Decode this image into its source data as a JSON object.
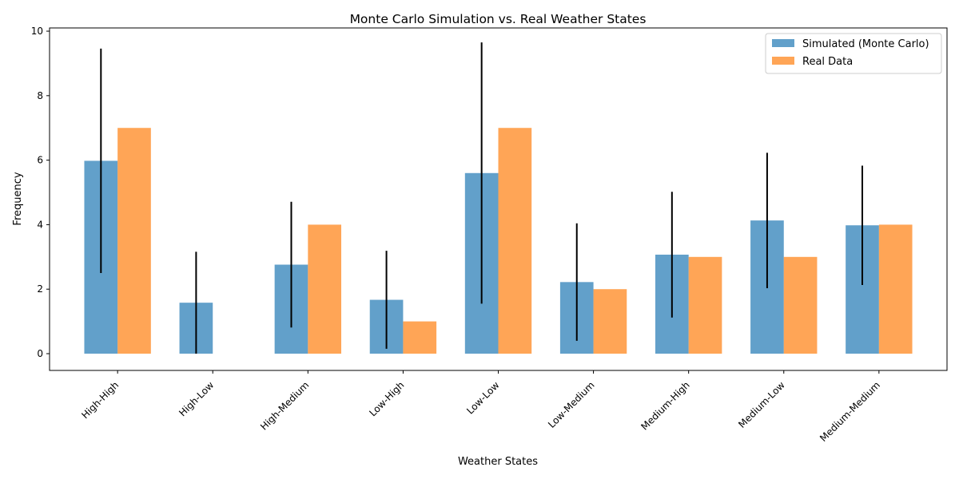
{
  "chart_data": {
    "type": "bar",
    "title": "Monte Carlo Simulation vs. Real Weather States",
    "xlabel": "Weather States",
    "ylabel": "Frequency",
    "ylim": [
      -0.52,
      10.1
    ],
    "yticks": [
      0,
      2,
      4,
      6,
      8,
      10
    ],
    "categories": [
      "High-High",
      "High-Low",
      "High-Medium",
      "Low-High",
      "Low-Low",
      "Low-Medium",
      "Medium-High",
      "Medium-Low",
      "Medium-Medium"
    ],
    "series": [
      {
        "name": "Simulated (Monte Carlo)",
        "color": "#1f77b4",
        "opacity": 0.7,
        "values": [
          5.98,
          1.58,
          2.76,
          1.67,
          5.6,
          2.22,
          3.07,
          4.13,
          3.98
        ],
        "error": [
          3.48,
          1.58,
          1.95,
          1.52,
          4.05,
          1.82,
          1.95,
          2.1,
          1.85
        ]
      },
      {
        "name": "Real Data",
        "color": "#ff7f0e",
        "opacity": 0.7,
        "values": [
          7,
          0,
          4,
          1,
          7,
          2,
          3,
          3,
          4
        ]
      }
    ],
    "legend_position": "upper right",
    "grid": false
  }
}
